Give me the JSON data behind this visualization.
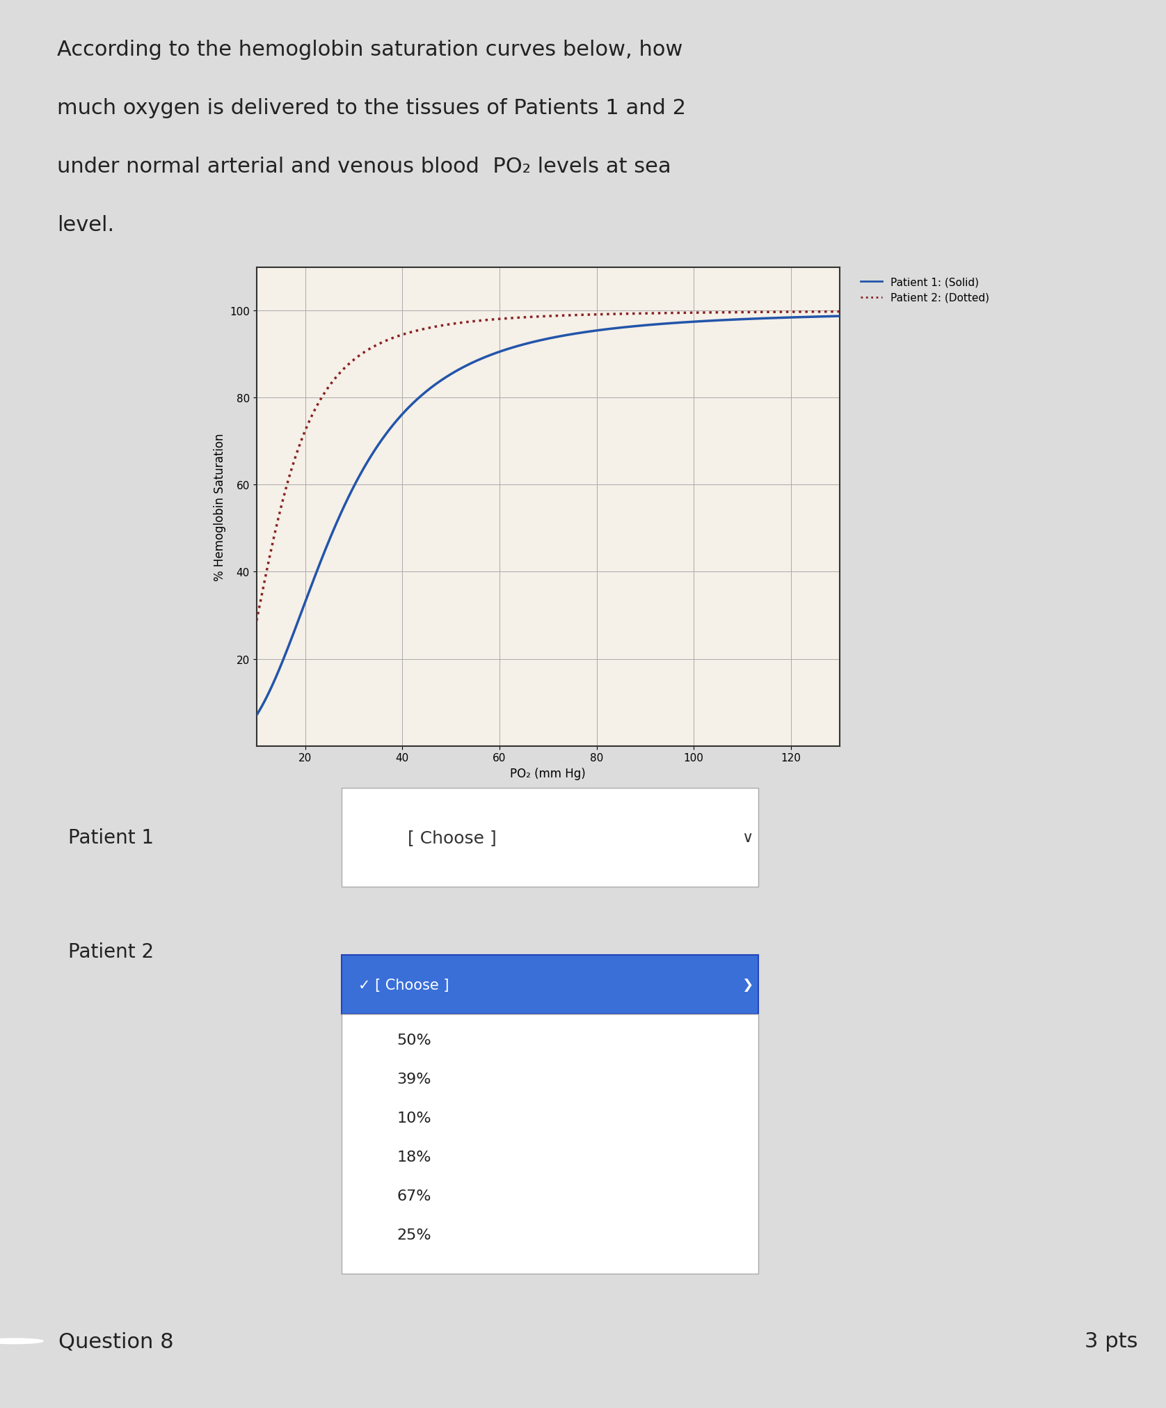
{
  "ylabel": "% Hemoglobin Saturation",
  "xlabel": "PO₂ (mm Hg)",
  "xlim": [
    10,
    130
  ],
  "ylim": [
    0,
    110
  ],
  "xticks": [
    20,
    40,
    60,
    80,
    100,
    120
  ],
  "yticks": [
    20,
    40,
    60,
    80,
    100
  ],
  "curve1_color": "#2255aa",
  "curve2_color": "#882222",
  "legend_text1": "Patient 1: (Solid)",
  "legend_text2": "Patient 2: (Dotted)",
  "patient1_label": "Patient 1",
  "patient2_label": "Patient 2",
  "dropdown_placeholder": "[ Choose ]",
  "dropdown_options": [
    "[ Choose ]",
    "50%",
    "39%",
    "10%",
    "18%",
    "67%",
    "25%"
  ],
  "question_label": "Question 8",
  "pts_label": "3 pts",
  "bg_color": "#dcdcdc",
  "chart_bg": "#f5f0e8",
  "dropdown_bg": "#3a6fd8",
  "title_lines": [
    "According to the hemoglobin saturation curves below, how",
    "much oxygen is delivered to the tissues of Patients 1 and 2",
    "under normal arterial and venous blood  PO₂ levels at sea",
    "level."
  ],
  "title_fontsize": 22,
  "axis_label_fontsize": 12,
  "tick_fontsize": 11,
  "legend_fontsize": 11,
  "row_label_fontsize": 20,
  "question_fontsize": 22
}
